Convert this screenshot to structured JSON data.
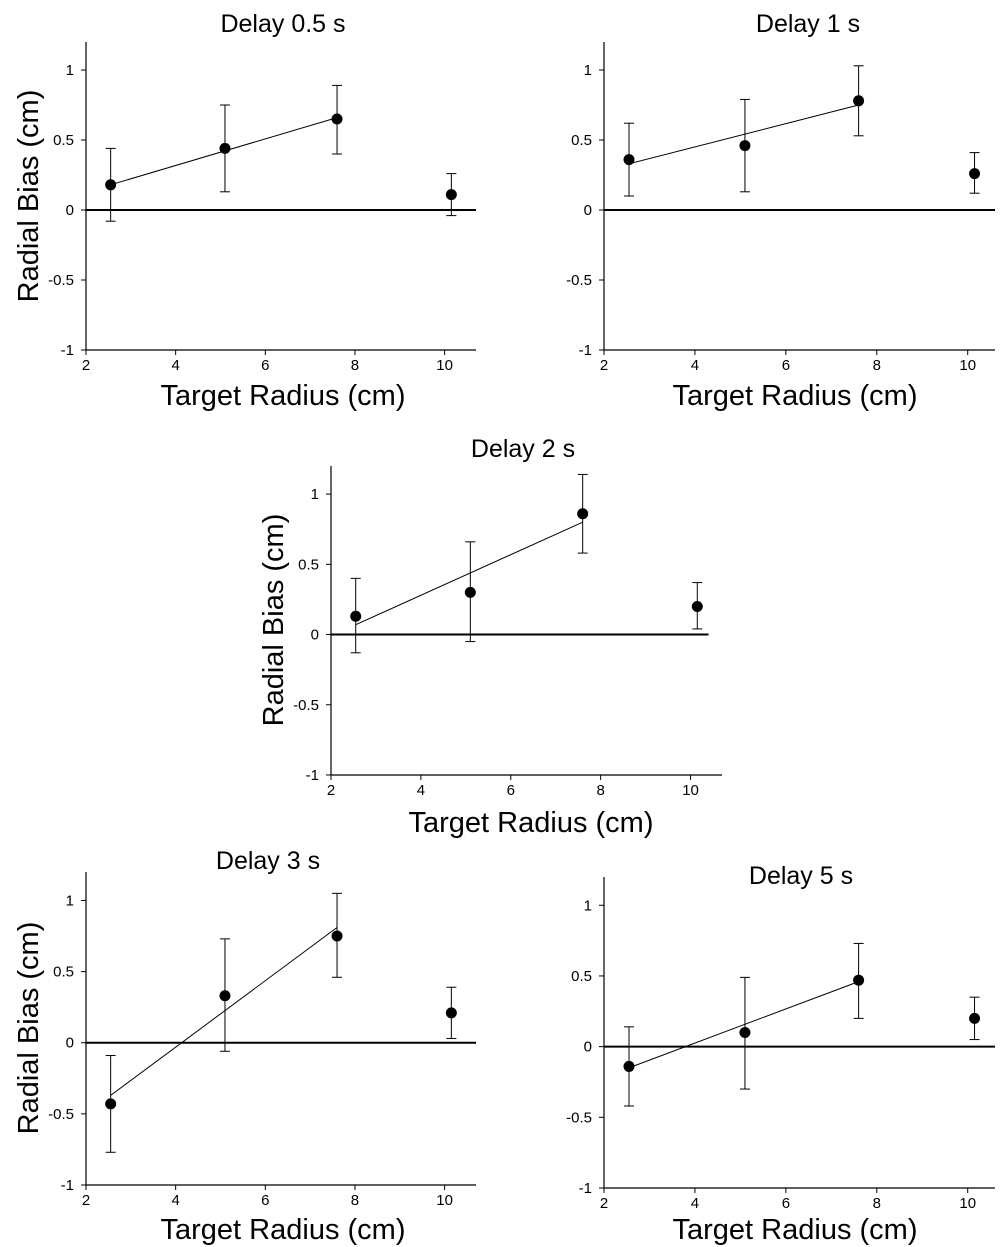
{
  "chart_data": [
    {
      "type": "scatter",
      "title": "Delay 0.5 s",
      "xlabel": "Target Radius (cm)",
      "ylabel": "Radial Bias (cm)",
      "xlim": [
        2,
        10.7
      ],
      "ylim": [
        -1,
        1.2
      ],
      "xticks": [
        "2",
        "4",
        "6",
        "8",
        "10"
      ],
      "yticks": [
        "-1",
        "-0.5",
        "0",
        "0.5",
        "1"
      ],
      "points": [
        {
          "x": 2.55,
          "y": 0.18,
          "err_low": -0.08,
          "err_high": 0.44
        },
        {
          "x": 5.1,
          "y": 0.44,
          "err_low": 0.13,
          "err_high": 0.75
        },
        {
          "x": 7.6,
          "y": 0.65,
          "err_low": 0.4,
          "err_high": 0.89
        },
        {
          "x": 10.15,
          "y": 0.11,
          "err_low": -0.04,
          "err_high": 0.26
        }
      ],
      "fit": {
        "x": [
          2.55,
          7.6
        ],
        "y": [
          0.18,
          0.66
        ]
      },
      "zero_line": {
        "x": [
          2,
          10.7
        ]
      }
    },
    {
      "type": "scatter",
      "title": "Delay 1 s",
      "xlabel": "Target Radius (cm)",
      "ylabel": "",
      "xlim": [
        2,
        10.6
      ],
      "ylim": [
        -1,
        1.2
      ],
      "xticks": [
        "2",
        "4",
        "6",
        "8",
        "10"
      ],
      "yticks": [
        "-1",
        "-0.5",
        "0",
        "0.5",
        "1"
      ],
      "points": [
        {
          "x": 2.55,
          "y": 0.36,
          "err_low": 0.1,
          "err_high": 0.62
        },
        {
          "x": 5.1,
          "y": 0.46,
          "err_low": 0.13,
          "err_high": 0.79
        },
        {
          "x": 7.6,
          "y": 0.78,
          "err_low": 0.53,
          "err_high": 1.03
        },
        {
          "x": 10.15,
          "y": 0.26,
          "err_low": 0.12,
          "err_high": 0.41
        }
      ],
      "fit": {
        "x": [
          2.55,
          7.6
        ],
        "y": [
          0.33,
          0.75
        ]
      },
      "zero_line": {
        "x": [
          2,
          10.6
        ]
      }
    },
    {
      "type": "scatter",
      "title": "Delay 2 s",
      "xlabel": "Target Radius (cm)",
      "ylabel": "Radial Bias (cm)",
      "xlim": [
        2,
        10.7
      ],
      "ylim": [
        -1,
        1.2
      ],
      "xticks": [
        "2",
        "4",
        "6",
        "8",
        "10"
      ],
      "yticks": [
        "-1",
        "-0.5",
        "0",
        "0.5",
        "1"
      ],
      "points": [
        {
          "x": 2.55,
          "y": 0.13,
          "err_low": -0.13,
          "err_high": 0.4
        },
        {
          "x": 5.1,
          "y": 0.3,
          "err_low": -0.05,
          "err_high": 0.66
        },
        {
          "x": 7.6,
          "y": 0.86,
          "err_low": 0.58,
          "err_high": 1.14
        },
        {
          "x": 10.15,
          "y": 0.2,
          "err_low": 0.04,
          "err_high": 0.37
        }
      ],
      "fit": {
        "x": [
          2.55,
          7.6
        ],
        "y": [
          0.07,
          0.8
        ]
      },
      "zero_line": {
        "x": [
          2,
          10.4
        ]
      }
    },
    {
      "type": "scatter",
      "title": "Delay 3 s",
      "xlabel": "Target Radius (cm)",
      "ylabel": "Radial Bias (cm)",
      "xlim": [
        2,
        10.7
      ],
      "ylim": [
        -1,
        1.2
      ],
      "xticks": [
        "2",
        "4",
        "6",
        "8",
        "10"
      ],
      "yticks": [
        "-1",
        "-0.5",
        "0",
        "0.5",
        "1"
      ],
      "points": [
        {
          "x": 2.55,
          "y": -0.43,
          "err_low": -0.77,
          "err_high": -0.09
        },
        {
          "x": 5.1,
          "y": 0.33,
          "err_low": -0.06,
          "err_high": 0.73
        },
        {
          "x": 7.6,
          "y": 0.75,
          "err_low": 0.46,
          "err_high": 1.05
        },
        {
          "x": 10.15,
          "y": 0.21,
          "err_low": 0.03,
          "err_high": 0.39
        }
      ],
      "fit": {
        "x": [
          2.55,
          7.6
        ],
        "y": [
          -0.37,
          0.81
        ]
      },
      "zero_line": {
        "x": [
          2,
          10.7
        ]
      }
    },
    {
      "type": "scatter",
      "title": "Delay 5 s",
      "xlabel": "Target Radius (cm)",
      "ylabel": "",
      "xlim": [
        2,
        10.6
      ],
      "ylim": [
        -1,
        1.2
      ],
      "xticks": [
        "2",
        "4",
        "6",
        "8",
        "10"
      ],
      "yticks": [
        "-1",
        "-0.5",
        "0",
        "0.5",
        "1"
      ],
      "points": [
        {
          "x": 2.55,
          "y": -0.14,
          "err_low": -0.42,
          "err_high": 0.14
        },
        {
          "x": 5.1,
          "y": 0.1,
          "err_low": -0.3,
          "err_high": 0.49
        },
        {
          "x": 7.6,
          "y": 0.47,
          "err_low": 0.2,
          "err_high": 0.73
        },
        {
          "x": 10.15,
          "y": 0.2,
          "err_low": 0.05,
          "err_high": 0.35
        }
      ],
      "fit": {
        "x": [
          2.55,
          7.6
        ],
        "y": [
          -0.15,
          0.46
        ]
      },
      "zero_line": {
        "x": [
          2,
          10.6
        ]
      }
    }
  ]
}
